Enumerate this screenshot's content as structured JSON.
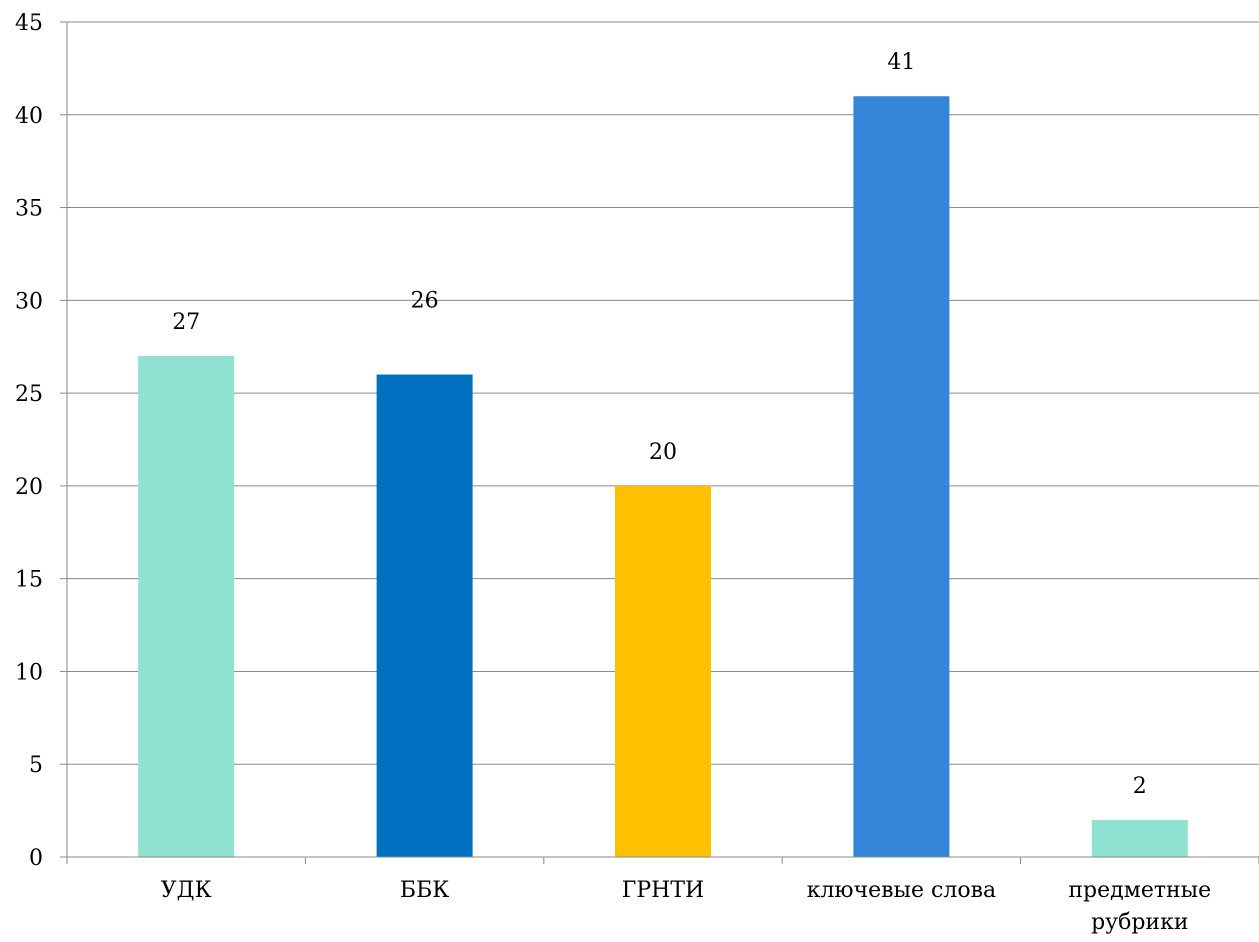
{
  "chart_data": {
    "type": "bar",
    "categories": [
      [
        "УДК"
      ],
      [
        "ББК"
      ],
      [
        "ГРНТИ"
      ],
      [
        "ключевые слова"
      ],
      [
        "предметные",
        "рубрики"
      ]
    ],
    "values": [
      27,
      26,
      20,
      41,
      2
    ],
    "data_labels": [
      "27",
      "26",
      "20",
      "41",
      "2"
    ],
    "colors": [
      "#8fe1d0",
      "#0070c0",
      "#ffc000",
      "#3585d8",
      "#8fe1d0"
    ],
    "ylim": [
      0,
      45
    ],
    "yticks": [
      0,
      5,
      10,
      15,
      20,
      25,
      30,
      35,
      40,
      45
    ],
    "grid": true,
    "legend": "none",
    "title": "",
    "xlabel": "",
    "ylabel": ""
  }
}
